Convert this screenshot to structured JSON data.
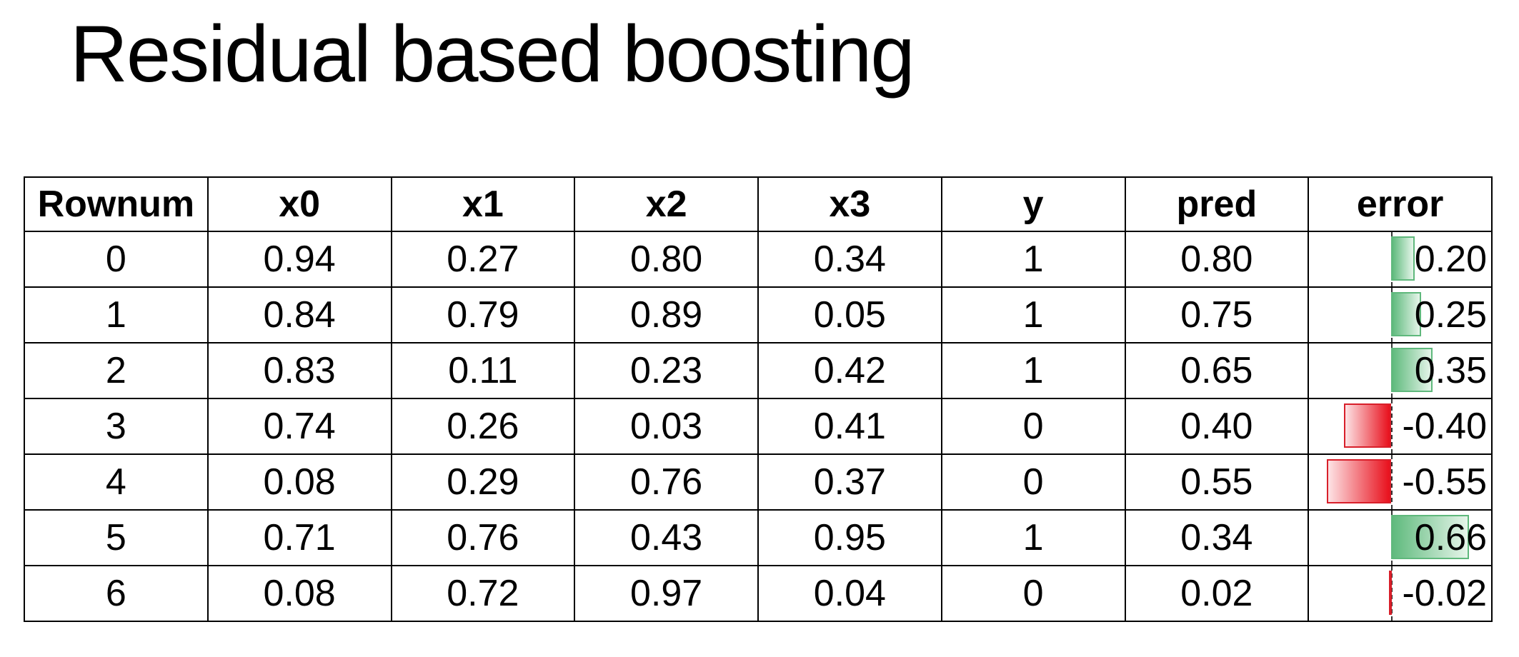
{
  "title": "Residual based boosting",
  "table": {
    "headers": [
      "Rownum",
      "x0",
      "x1",
      "x2",
      "x3",
      "y",
      "pred",
      "error"
    ],
    "rows": [
      {
        "rownum": "0",
        "x0": "0.94",
        "x1": "0.27",
        "x2": "0.80",
        "x3": "0.34",
        "y": "1",
        "pred": "0.80",
        "error": "0.20",
        "error_value": 0.2
      },
      {
        "rownum": "1",
        "x0": "0.84",
        "x1": "0.79",
        "x2": "0.89",
        "x3": "0.05",
        "y": "1",
        "pred": "0.75",
        "error": "0.25",
        "error_value": 0.25
      },
      {
        "rownum": "2",
        "x0": "0.83",
        "x1": "0.11",
        "x2": "0.23",
        "x3": "0.42",
        "y": "1",
        "pred": "0.65",
        "error": "0.35",
        "error_value": 0.35
      },
      {
        "rownum": "3",
        "x0": "0.74",
        "x1": "0.26",
        "x2": "0.03",
        "x3": "0.41",
        "y": "0",
        "pred": "0.40",
        "error": "-0.40",
        "error_value": -0.4
      },
      {
        "rownum": "4",
        "x0": "0.08",
        "x1": "0.29",
        "x2": "0.76",
        "x3": "0.37",
        "y": "0",
        "pred": "0.55",
        "error": "-0.55",
        "error_value": -0.55
      },
      {
        "rownum": "5",
        "x0": "0.71",
        "x1": "0.76",
        "x2": "0.43",
        "x3": "0.95",
        "y": "1",
        "pred": "0.34",
        "error": "0.66",
        "error_value": 0.66
      },
      {
        "rownum": "6",
        "x0": "0.08",
        "x1": "0.72",
        "x2": "0.97",
        "x3": "0.04",
        "y": "0",
        "pred": "0.02",
        "error": "-0.02",
        "error_value": -0.02
      }
    ]
  },
  "colors": {
    "positive_bar": "#5fba7d",
    "negative_bar": "#e8101c"
  }
}
